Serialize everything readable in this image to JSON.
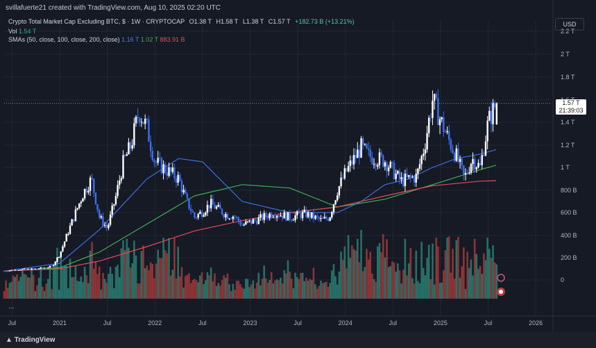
{
  "header": {
    "creator_line": "svillafuerte21 created with TradingView.com, Aug 10, 2025 02:20 UTC",
    "symbol": "Crypto Total Market Cap Excluding BTC, $ · 1W · CRYPTOCAP",
    "open": "O1.38 T",
    "high": "H1.58 T",
    "low": "L1.38 T",
    "close": "C1.57 T",
    "change": "+182.73 B (+13.21%)",
    "vol_label": "Vol",
    "vol_value": "1.54 T",
    "sma_label": "SMAs (50, close, 100, close, 200, close)",
    "sma50_value": "1.16 T",
    "sma100_value": "1.02 T",
    "sma200_value": "883.91 B",
    "currency": "USD",
    "more": "...",
    "price_tag_value": "1.57 T",
    "price_tag_countdown": "21:39:03"
  },
  "footer": {
    "brand": "TradingView"
  },
  "colors": {
    "background": "#161a25",
    "up_candle": "#ffffff",
    "down_candle": "#3b6ef0",
    "sma50": "#3e6fe0",
    "sma100": "#3fae55",
    "sma200": "#e24d5a",
    "vol_up": "#2a8073",
    "vol_down": "#a13a3a"
  },
  "chart_data": {
    "type": "line",
    "title": "Crypto Total Market Cap Excluding BTC",
    "xlabel": "",
    "ylabel": "USD",
    "y_unit": "USD billions",
    "y_scale": "log",
    "y_tick_labels": [
      "2.2 T",
      "2 T",
      "1.8 T",
      "1.6 T",
      "1.4 T",
      "1.2 T",
      "1 T",
      "800 B",
      "600 B",
      "400 B",
      "200 B",
      "0"
    ],
    "y_tick_values": [
      2200,
      2000,
      1800,
      1600,
      1400,
      1200,
      1000,
      800,
      600,
      400,
      200,
      0
    ],
    "x_tick_labels": [
      "Jul",
      "2021",
      "Jul",
      "2022",
      "Jul",
      "2023",
      "Jul",
      "2024",
      "Jul",
      "2025",
      "Jul",
      "2026"
    ],
    "x_tick_dates": [
      "2020-07",
      "2021-01",
      "2021-07",
      "2022-01",
      "2022-07",
      "2023-01",
      "2023-07",
      "2024-01",
      "2024-07",
      "2025-01",
      "2025-07",
      "2026-01"
    ],
    "x_range": [
      "2020-06",
      "2026-03"
    ],
    "grid": true,
    "current_price": 1570,
    "series": [
      {
        "name": "Crypto Total Market Cap Excluding BTC (close)",
        "x": [
          "2020-06",
          "2020-08",
          "2020-10",
          "2020-12",
          "2021-01",
          "2021-02",
          "2021-03",
          "2021-04",
          "2021-05",
          "2021-06",
          "2021-07",
          "2021-08",
          "2021-09",
          "2021-10",
          "2021-11",
          "2021-12",
          "2022-01",
          "2022-02",
          "2022-03",
          "2022-04",
          "2022-05",
          "2022-06",
          "2022-07",
          "2022-08",
          "2022-10",
          "2022-11",
          "2022-12",
          "2023-02",
          "2023-04",
          "2023-06",
          "2023-08",
          "2023-10",
          "2023-11",
          "2023-12",
          "2024-01",
          "2024-03",
          "2024-04",
          "2024-06",
          "2024-08",
          "2024-10",
          "2024-11",
          "2024-12",
          "2025-01",
          "2025-02",
          "2025-03",
          "2025-04",
          "2025-05",
          "2025-06",
          "2025-07",
          "2025-08"
        ],
        "values": [
          80,
          95,
          100,
          120,
          230,
          420,
          600,
          780,
          900,
          560,
          460,
          720,
          1040,
          1200,
          1500,
          1350,
          1050,
          1000,
          950,
          900,
          700,
          560,
          610,
          680,
          580,
          570,
          490,
          540,
          600,
          560,
          590,
          530,
          560,
          800,
          950,
          1180,
          1100,
          1060,
          880,
          920,
          1200,
          1600,
          1420,
          1250,
          1100,
          900,
          1080,
          1000,
          1400,
          1570
        ]
      },
      {
        "name": "SMA 50",
        "x": [
          "2020-06",
          "2021-01",
          "2021-06",
          "2021-12",
          "2022-04",
          "2022-07",
          "2022-12",
          "2023-06",
          "2023-12",
          "2024-03",
          "2024-06",
          "2024-09",
          "2024-12",
          "2025-03",
          "2025-06",
          "2025-08"
        ],
        "values": [
          80,
          150,
          450,
          900,
          1080,
          1050,
          700,
          600,
          600,
          700,
          850,
          900,
          1000,
          1080,
          1120,
          1160
        ]
      },
      {
        "name": "SMA 100",
        "x": [
          "2020-06",
          "2021-01",
          "2021-06",
          "2021-12",
          "2022-06",
          "2022-12",
          "2023-06",
          "2023-12",
          "2024-06",
          "2024-12",
          "2025-06",
          "2025-08"
        ],
        "values": [
          80,
          110,
          250,
          500,
          750,
          850,
          820,
          650,
          720,
          850,
          980,
          1020
        ]
      },
      {
        "name": "SMA 200",
        "x": [
          "2020-06",
          "2021-01",
          "2021-06",
          "2021-12",
          "2022-06",
          "2022-12",
          "2023-06",
          "2023-12",
          "2024-06",
          "2024-12",
          "2025-06",
          "2025-08"
        ],
        "values": [
          80,
          100,
          170,
          300,
          440,
          530,
          600,
          650,
          750,
          840,
          880,
          884
        ]
      }
    ]
  }
}
